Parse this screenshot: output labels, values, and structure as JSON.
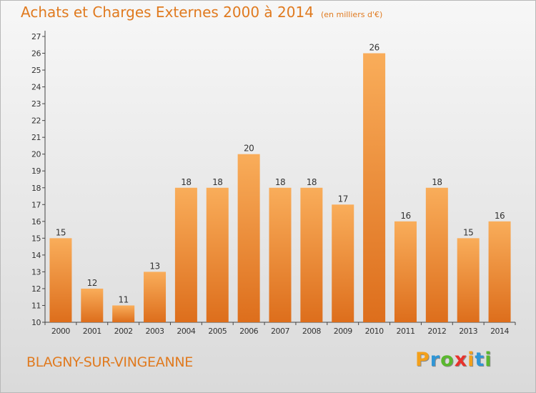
{
  "title": "Achats et Charges Externes 2000 à 2014",
  "unit": "(en milliers d'€)",
  "location": "BLAGNY-SUR-VINGEANNE",
  "logo": {
    "letters": [
      "P",
      "r",
      "o",
      "x",
      "i",
      "t",
      "i"
    ],
    "colors": [
      "#f3a01b",
      "#2f96d6",
      "#5ab82e",
      "#e8322c",
      "#f3a01b",
      "#2f96d6",
      "#5ab82e"
    ]
  },
  "colors": {
    "bar_light": "#f9ad5a",
    "bar_dark": "#dd6e1c",
    "accent": "#e07a1f",
    "axis": "#444444"
  },
  "chart_data": {
    "type": "bar",
    "categories": [
      "2000",
      "2001",
      "2002",
      "2003",
      "2004",
      "2005",
      "2006",
      "2007",
      "2008",
      "2009",
      "2010",
      "2011",
      "2012",
      "2013",
      "2014"
    ],
    "values": [
      15,
      12,
      11,
      13,
      18,
      18,
      20,
      18,
      18,
      17,
      26,
      16,
      18,
      15,
      16
    ],
    "title": "Achats et Charges Externes 2000 à 2014",
    "xlabel": "",
    "ylabel": "",
    "ylim": [
      10,
      27
    ],
    "yticks": [
      10,
      11,
      12,
      13,
      14,
      15,
      16,
      17,
      18,
      19,
      20,
      21,
      22,
      23,
      24,
      25,
      26,
      27
    ],
    "grid": false,
    "data_labels": true
  }
}
